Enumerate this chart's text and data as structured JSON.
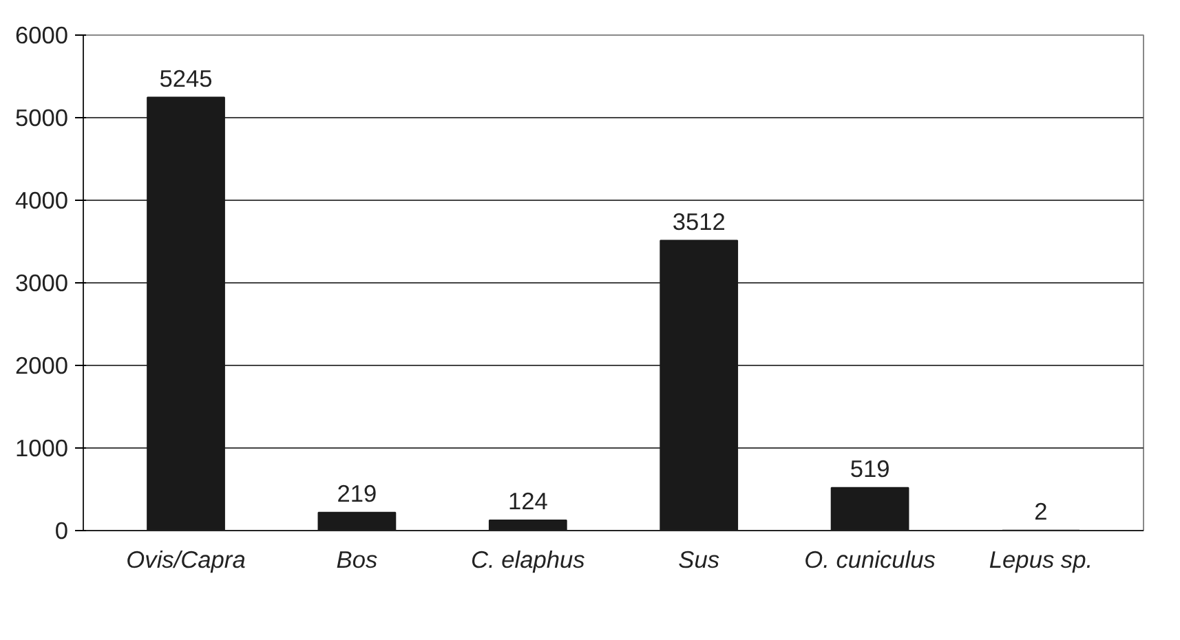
{
  "chart_data": {
    "type": "bar",
    "categories": [
      "Ovis/Capra",
      "Bos",
      "C. elaphus",
      "Sus",
      "O. cuniculus",
      "Lepus sp."
    ],
    "values": [
      5245,
      219,
      124,
      3512,
      519,
      2
    ],
    "color": "#1a1a1a",
    "ylim": [
      0,
      6000
    ],
    "yticks": [
      0,
      1000,
      2000,
      3000,
      4000,
      5000,
      6000
    ],
    "grid": "y",
    "data_labels": true
  }
}
